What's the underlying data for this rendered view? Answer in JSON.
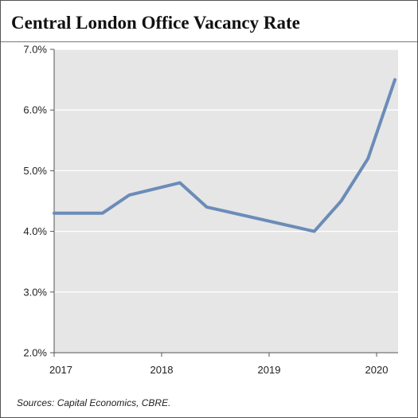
{
  "title": "Central London Office Vacancy Rate",
  "source": "Sources: Capital Economics, CBRE.",
  "colors": {
    "line": "#6b8cb8",
    "plot_background": "#e6e6e6",
    "gridline": "#ffffff",
    "axis": "#555555",
    "border": "#555555"
  },
  "chart_data": {
    "type": "line",
    "title": "Central London Office Vacancy Rate",
    "xlabel": "",
    "ylabel": "",
    "ylim": [
      2.0,
      7.0
    ],
    "xlim": [
      2017.0,
      2020.2
    ],
    "yticks": [
      2.0,
      3.0,
      4.0,
      5.0,
      6.0,
      7.0
    ],
    "ytick_labels": [
      "2.0%",
      "3.0%",
      "4.0%",
      "5.0%",
      "6.0%",
      "7.0%"
    ],
    "xticks": [
      2017,
      2018,
      2019,
      2020
    ],
    "xtick_labels": [
      "2017",
      "2018",
      "2019",
      "2020"
    ],
    "grid": "horizontal",
    "legend": "none",
    "series": [
      {
        "x": [
          2017.0,
          2017.45,
          2017.7,
          2018.17,
          2018.42,
          2019.42,
          2019.67,
          2019.92,
          2020.17
        ],
        "values": [
          4.3,
          4.3,
          4.6,
          4.8,
          4.4,
          4.0,
          4.5,
          5.2,
          6.5
        ]
      }
    ]
  }
}
